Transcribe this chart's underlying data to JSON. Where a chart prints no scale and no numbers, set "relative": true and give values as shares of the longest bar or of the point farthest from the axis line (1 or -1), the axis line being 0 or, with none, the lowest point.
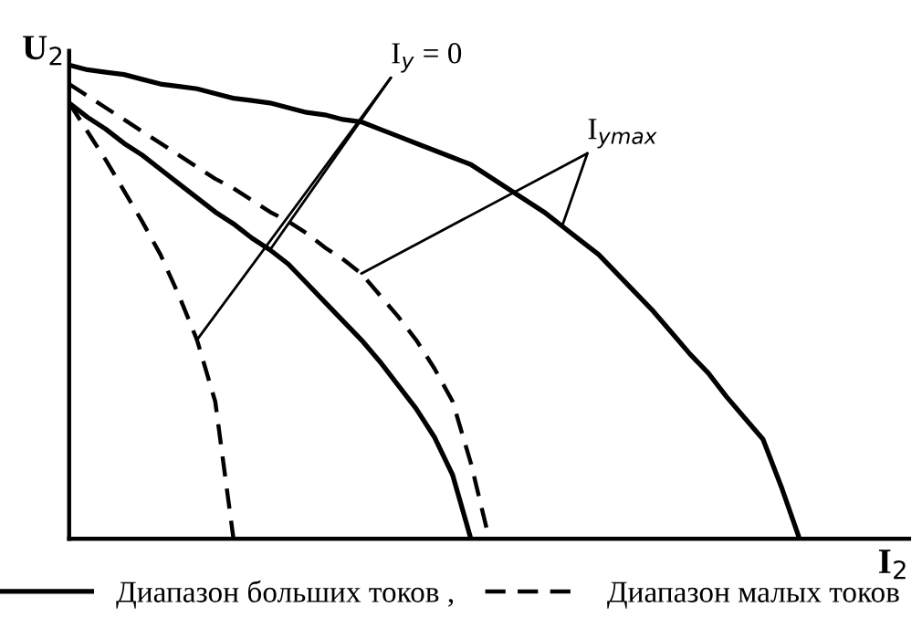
{
  "chart_data": {
    "type": "line",
    "relative": true,
    "xlabel": "I$_{2}$",
    "ylabel": "U$_{2}$",
    "legend": "bottom",
    "marker": "none",
    "categories": [
      null,
      null,
      null,
      null,
      null,
      null,
      null,
      null,
      null,
      null,
      null,
      null,
      null,
      null,
      null,
      null,
      null,
      null,
      null,
      null,
      null,
      null,
      null,
      null,
      null,
      null,
      null,
      null,
      null,
      null,
      null,
      null,
      null,
      null,
      null,
      null,
      null,
      null,
      null,
      null,
      null,
      null,
      null,
      null,
      null,
      null,
      null
    ],
    "series": [
      {
        "name": "Диапазон больших токов ,",
        "color": "#000000",
        "line_style": "solid",
        "values": [
          1.0,
          0.99,
          0.985,
          0.98,
          0.97,
          0.96,
          0.955,
          0.95,
          0.94,
          0.93,
          0.925,
          0.92,
          0.91,
          0.9,
          0.895,
          0.885,
          0.88,
          0.865,
          0.85,
          0.835,
          0.82,
          0.805,
          0.79,
          0.765,
          0.74,
          0.715,
          0.69,
          0.66,
          0.63,
          0.6,
          0.56,
          0.52,
          0.48,
          0.435,
          0.39,
          0.35,
          0.3,
          0.255,
          0.21,
          0.11,
          0,
          null,
          null,
          null,
          null,
          null,
          null
        ]
      },
      {
        "name": "Диапазон малых токов",
        "color": "#000000",
        "line_style": "dashed",
        "values": [
          0.96,
          0.935,
          0.91,
          0.885,
          0.86,
          0.835,
          0.81,
          0.785,
          0.76,
          0.74,
          0.715,
          0.69,
          0.67,
          0.645,
          0.615,
          0.59,
          0.56,
          0.515,
          0.47,
          0.42,
          0.36,
          0.29,
          0.16,
          0,
          null,
          null,
          null,
          null,
          null,
          null,
          null,
          null,
          null,
          null,
          null,
          null,
          null,
          null,
          null,
          null,
          null,
          null,
          null,
          null,
          null,
          null,
          null
        ]
      },
      {
        "color": "#000000",
        "line_style": "solid",
        "values": [
          0.92,
          0.89,
          0.865,
          0.835,
          0.81,
          0.78,
          0.75,
          0.72,
          0.69,
          0.665,
          0.635,
          0.61,
          0.58,
          0.54,
          0.5,
          0.46,
          0.42,
          0.375,
          0.325,
          0.275,
          0.215,
          0.135,
          0,
          null,
          null,
          null,
          null,
          null,
          null,
          null,
          null,
          null,
          null,
          null,
          null,
          null,
          null,
          null,
          null,
          null,
          null,
          null,
          null,
          null,
          null,
          null,
          null
        ]
      },
      {
        "color": "#000000",
        "line_style": "dashed",
        "values": [
          0.92,
          0.86,
          0.8,
          0.735,
          0.67,
          0.6,
          0.515,
          0.42,
          0.29,
          0,
          null,
          null,
          null,
          null,
          null,
          null,
          null,
          null,
          null,
          null,
          null,
          null,
          null,
          null,
          null,
          null,
          null,
          null,
          null,
          null,
          null,
          null,
          null,
          null,
          null,
          null,
          null,
          null,
          null,
          null,
          null,
          null,
          null,
          null,
          null,
          null,
          null
        ]
      }
    ],
    "annotations": [
      "I$_{y}$ = 0",
      "I$_{ymax}$"
    ]
  }
}
